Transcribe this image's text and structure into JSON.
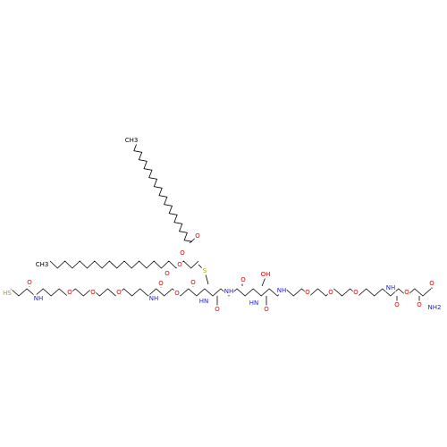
{
  "atoms": [
    "CH3",
    "O",
    "O",
    "CH3",
    "O",
    "O",
    "S",
    "HS",
    "O",
    "NH",
    "O",
    "O",
    "O",
    "NH",
    "O",
    "O",
    "O",
    "HN",
    "O",
    "NH",
    "O",
    "HN",
    "OH",
    "O",
    "NH",
    "O",
    "O",
    "O",
    "NH",
    "O",
    "O",
    "O",
    "NH2",
    "O"
  ]
}
